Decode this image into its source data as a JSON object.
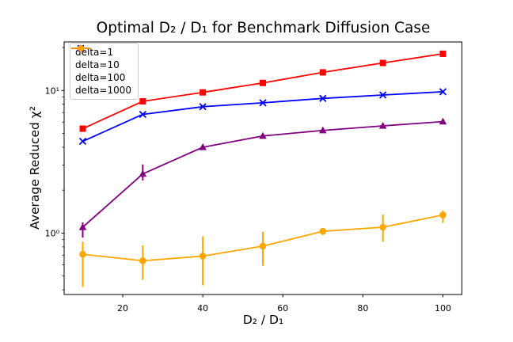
{
  "chart_data": {
    "type": "line",
    "title": "Optimal D₂ / D₁ for Benchmark Diffusion Case",
    "xlabel": "D₂ / D₁",
    "ylabel": "Average Reduced χ²",
    "xscale": "linear",
    "yscale": "log",
    "xlim": [
      5.35,
      104.75
    ],
    "ylim": [
      0.371,
      21.9
    ],
    "xticks": [
      20,
      40,
      60,
      80,
      100
    ],
    "yticks": [
      {
        "value": 1,
        "label": "10⁰"
      },
      {
        "value": 10,
        "label": "10¹"
      }
    ],
    "y_minor_ticks": [
      0.4,
      0.5,
      0.6,
      0.7,
      0.8,
      0.9,
      2,
      3,
      4,
      5,
      6,
      7,
      8,
      9,
      20
    ],
    "grid": false,
    "legend_position": "upper-left",
    "x": [
      10,
      25,
      40,
      55,
      70,
      85,
      100
    ],
    "series": [
      {
        "name": "delta=1",
        "color": "#ff0000",
        "marker": "square",
        "values": [
          5.4,
          8.4,
          9.7,
          11.3,
          13.4,
          15.6,
          18.1
        ],
        "err_lo": null,
        "err_hi": null
      },
      {
        "name": "delta=10",
        "color": "#0000ff",
        "marker": "x",
        "values": [
          4.4,
          6.8,
          7.7,
          8.2,
          8.8,
          9.3,
          9.8
        ],
        "err_lo": null,
        "err_hi": null
      },
      {
        "name": "delta=100",
        "color": "#800080",
        "marker": "triangle-up",
        "values": [
          1.1,
          2.6,
          4.0,
          4.8,
          5.25,
          5.65,
          6.05
        ],
        "err_lo": [
          0.93,
          2.34,
          3.9,
          4.65,
          5.1,
          5.5,
          5.9
        ],
        "err_hi": [
          1.19,
          3.03,
          4.15,
          4.95,
          5.45,
          5.8,
          6.2
        ]
      },
      {
        "name": "delta=1000",
        "color": "#ffa500",
        "marker": "circle",
        "values": [
          0.71,
          0.64,
          0.69,
          0.81,
          1.03,
          1.1,
          1.34
        ],
        "err_lo": [
          0.42,
          0.47,
          0.43,
          0.59,
          0.97,
          0.87,
          1.18
        ],
        "err_hi": [
          0.87,
          0.82,
          0.95,
          1.02,
          1.08,
          1.35,
          1.44
        ]
      }
    ]
  }
}
